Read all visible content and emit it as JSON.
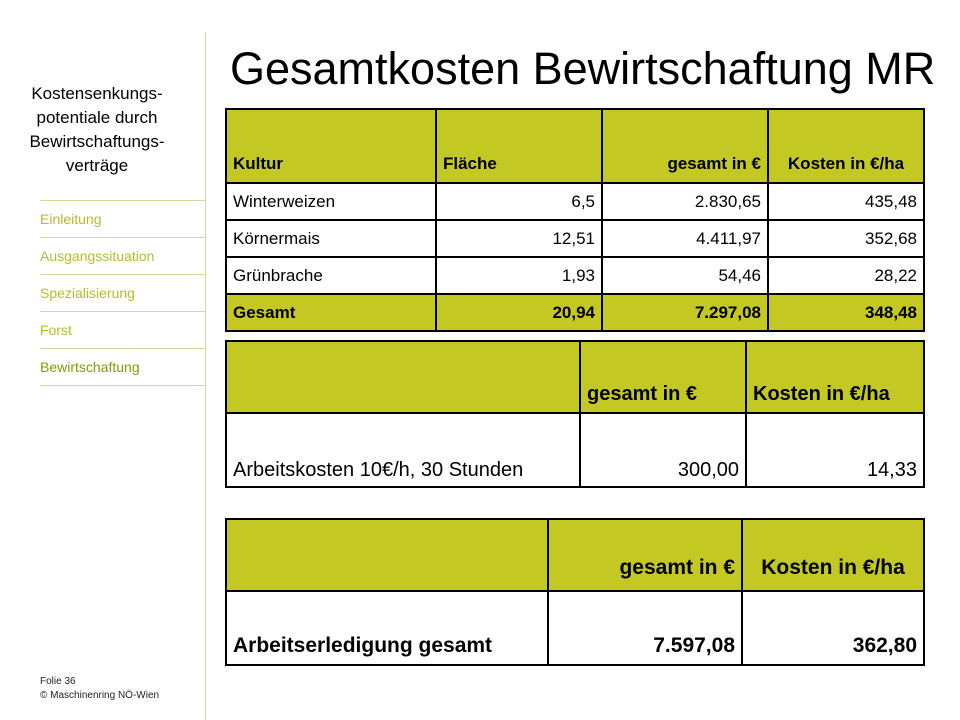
{
  "sidebar": {
    "title_lines": [
      "Kostensenkungs-",
      "potentiale durch",
      "Bewirtschaftungs-",
      "verträge"
    ],
    "nav_items": [
      {
        "label": "Einleitung"
      },
      {
        "label": "Ausgangssituation"
      },
      {
        "label": "Spezialisierung"
      },
      {
        "label": "Forst"
      },
      {
        "label": "Bewirtschaftung"
      }
    ],
    "active_item": "Bewirtschaftung"
  },
  "slide": {
    "title": "Gesamtkosten Bewirtschaftung MR"
  },
  "table1": {
    "headers": [
      "Kultur",
      "Fläche",
      "gesamt in €",
      "Kosten in €/ha"
    ],
    "rows": [
      [
        "Winterweizen",
        "6,5",
        "2.830,65",
        "435,48"
      ],
      [
        "Körnermais",
        "12,51",
        "4.411,97",
        "352,68"
      ],
      [
        "Grünbrache",
        "1,93",
        "54,46",
        "28,22"
      ]
    ],
    "total": [
      "Gesamt",
      "20,94",
      "7.297,08",
      "348,48"
    ]
  },
  "table2": {
    "headers": [
      "",
      "gesamt in €",
      "Kosten in €/ha"
    ],
    "row": [
      "Arbeitskosten 10€/h, 30 Stunden",
      "300,00",
      "14,33"
    ]
  },
  "table3": {
    "headers": [
      "",
      "gesamt in €",
      "Kosten in €/ha"
    ],
    "row": [
      "Arbeitserledigung gesamt",
      "7.597,08",
      "362,80"
    ]
  },
  "footer": {
    "slide_number": "Folie 36",
    "copyright": "© Maschinenring NÖ-Wien"
  },
  "colors": {
    "accent": "#c4c822",
    "nav_text": "#b5bc2e"
  }
}
